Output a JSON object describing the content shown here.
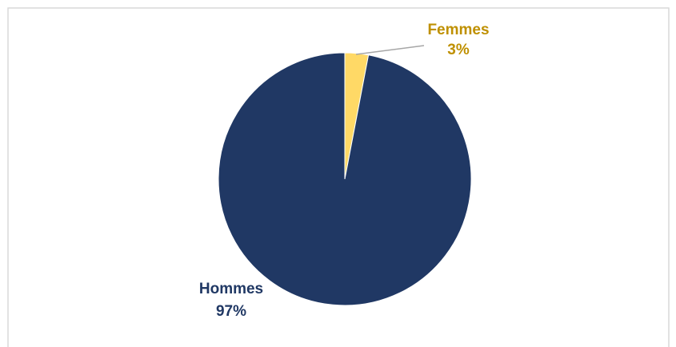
{
  "chart_data": {
    "type": "pie",
    "categories": [
      "Femmes",
      "Hommes"
    ],
    "values": [
      3,
      97
    ],
    "value_labels": [
      "3%",
      "97%"
    ],
    "colors": [
      "#ffd966",
      "#203864"
    ],
    "label_colors": [
      "#bf9000",
      "#203864"
    ]
  }
}
